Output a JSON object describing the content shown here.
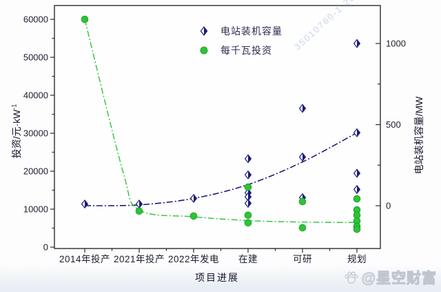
{
  "watermarks": {
    "diagonal_text": "35010760-1-2023",
    "brand_text": "@星空财富"
  },
  "legend": {
    "items": [
      {
        "label": "电站装机容量",
        "marker": "half-diamond"
      },
      {
        "label": "每千瓦投资",
        "marker": "circle"
      }
    ]
  },
  "colors": {
    "capacity_navy": "#1b1b78",
    "invest_green": "#2ec437",
    "invest_green_edge": "#1da32b",
    "axis_line": "#2b2b2b",
    "tick_text": "#1c1c2e"
  },
  "chart_data": {
    "type": "scatter",
    "title": "",
    "xlabel": "项目进展",
    "categories": [
      "2014年投产",
      "2021年投产",
      "2022年发电",
      "在建",
      "可研",
      "规划"
    ],
    "y_left": {
      "label_main": "投资/元·kW",
      "label_sup": "-1",
      "min": 0,
      "max": 60000,
      "ticks": [
        0,
        10000,
        20000,
        30000,
        40000,
        50000,
        60000
      ],
      "minor_ticks": [
        5000,
        15000,
        25000,
        35000,
        45000,
        55000
      ]
    },
    "y_right": {
      "label": "电站装机容量/MW",
      "min": 0,
      "max": 1000,
      "ticks": [
        0,
        500,
        1000
      ],
      "minor_ticks": [
        250,
        750
      ]
    },
    "series": [
      {
        "name": "电站装机容量",
        "axis": "right",
        "marker": "half-diamond",
        "style": "dash-dot",
        "points": [
          {
            "c": 0,
            "v": 10
          },
          {
            "c": 1,
            "v": 10
          },
          {
            "c": 2,
            "v": 45
          },
          {
            "c": 3,
            "v": 290
          },
          {
            "c": 3,
            "v": 190
          },
          {
            "c": 3,
            "v": 80
          },
          {
            "c": 3,
            "v": 55
          },
          {
            "c": 3,
            "v": 15
          },
          {
            "c": 4,
            "v": 600
          },
          {
            "c": 4,
            "v": 300
          },
          {
            "c": 4,
            "v": 50
          },
          {
            "c": 5,
            "v": 1000
          },
          {
            "c": 5,
            "v": 450
          },
          {
            "c": 5,
            "v": 200
          },
          {
            "c": 5,
            "v": 100
          }
        ],
        "trend": [
          [
            0,
            0
          ],
          [
            1,
            5
          ],
          [
            2,
            45
          ],
          [
            3,
            130
          ],
          [
            4,
            270
          ],
          [
            5,
            450
          ]
        ]
      },
      {
        "name": "每千瓦投资",
        "axis": "left",
        "marker": "circle",
        "style": "dash-dot",
        "points": [
          {
            "c": 0,
            "v": 60000
          },
          {
            "c": 1,
            "v": 9500
          },
          {
            "c": 2,
            "v": 8200
          },
          {
            "c": 3,
            "v": 15800
          },
          {
            "c": 3,
            "v": 8400
          },
          {
            "c": 3,
            "v": 6400
          },
          {
            "c": 4,
            "v": 12000
          },
          {
            "c": 4,
            "v": 5100
          },
          {
            "c": 5,
            "v": 12700
          },
          {
            "c": 5,
            "v": 9800
          },
          {
            "c": 5,
            "v": 8400
          },
          {
            "c": 5,
            "v": 6900
          },
          {
            "c": 5,
            "v": 5500
          },
          {
            "c": 5,
            "v": 4700
          }
        ],
        "trend": [
          [
            0,
            60000
          ],
          [
            0.7,
            20000
          ],
          [
            1,
            9800
          ],
          [
            2,
            8000
          ],
          [
            3,
            7000
          ],
          [
            4,
            6600
          ],
          [
            5,
            6500
          ]
        ]
      }
    ]
  }
}
